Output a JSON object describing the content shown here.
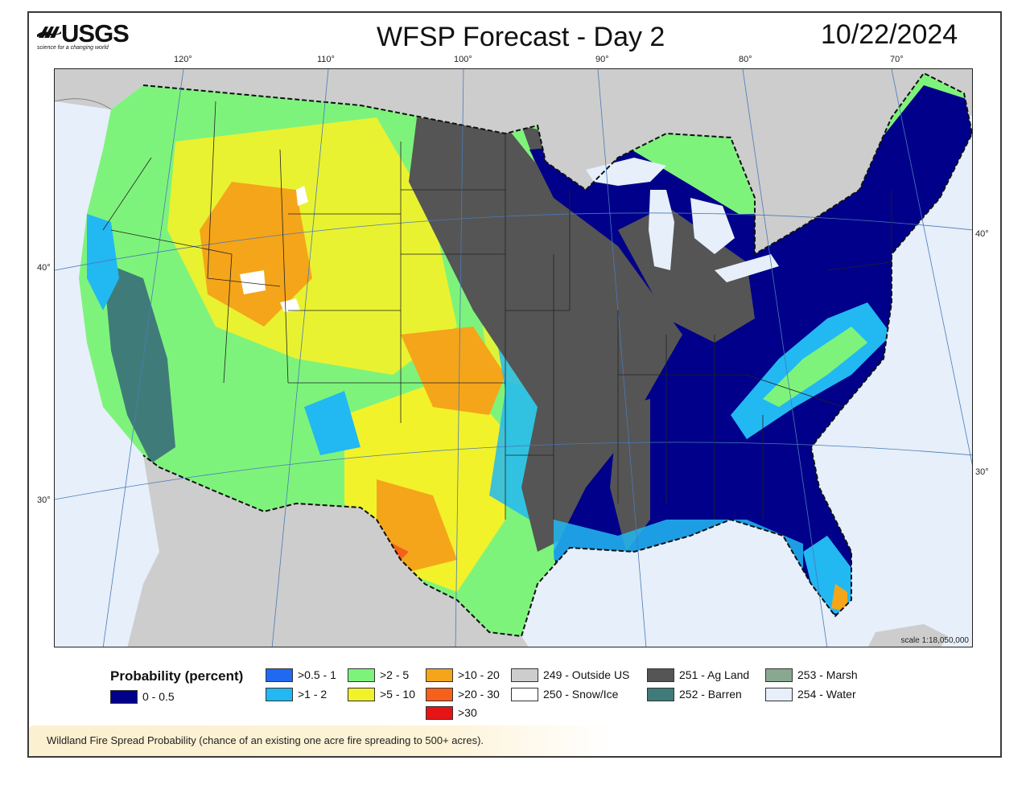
{
  "header": {
    "logo_text": "USGS",
    "logo_tagline": "science for a changing world",
    "title": "WFSP Forecast - Day 2",
    "date": "10/22/2024"
  },
  "map": {
    "longitude_labels": [
      "120°",
      "110°",
      "100°",
      "90°",
      "80°",
      "70°"
    ],
    "latitude_labels_left": [
      "40°",
      "30°"
    ],
    "latitude_labels_right": [
      "40°",
      "30°"
    ],
    "scale": "scale 1:18,050,000"
  },
  "legend": {
    "title": "Probability (percent)",
    "items": [
      {
        "label": "0 - 0.5",
        "color": "#00008a"
      },
      {
        "label": ">0.5 - 1",
        "color": "#1f6af0"
      },
      {
        "label": ">1 - 2",
        "color": "#22b8f2"
      },
      {
        "label": ">2 - 5",
        "color": "#7ef37c"
      },
      {
        "label": ">5 - 10",
        "color": "#f2f22a"
      },
      {
        "label": ">10 - 20",
        "color": "#f5a51a"
      },
      {
        "label": ">20 - 30",
        "color": "#f5601a"
      },
      {
        "label": ">30",
        "color": "#e61414"
      },
      {
        "label": "249 - Outside US",
        "color": "#cdcdcd"
      },
      {
        "label": "250 - Snow/Ice",
        "color": "#ffffff"
      },
      {
        "label": "251 - Ag Land",
        "color": "#555555"
      },
      {
        "label": "252 - Barren",
        "color": "#3f7c79"
      },
      {
        "label": "253 - Marsh",
        "color": "#88a88f"
      },
      {
        "label": "254 - Water",
        "color": "#e6effa"
      }
    ]
  },
  "caption": "Wildland Fire Spread Probability (chance of an existing one acre fire spreading to 500+ acres)."
}
